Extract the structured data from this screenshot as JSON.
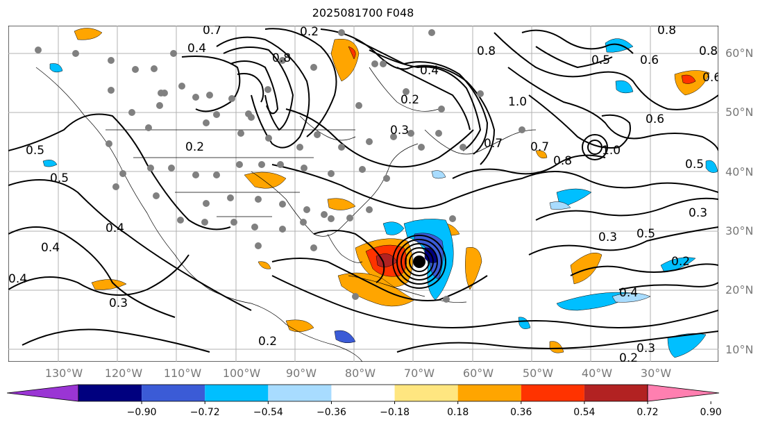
{
  "title": "2025081700 F048",
  "lat_labels": [
    "60°N",
    "50°N",
    "40°N",
    "30°N",
    "20°N",
    "10°N"
  ],
  "lon_labels": [
    "130°W",
    "120°W",
    "110°W",
    "100°W",
    "90°W",
    "80°W",
    "70°W",
    "60°W",
    "50°W",
    "40°W",
    "30°W"
  ],
  "colorbar": {
    "ticks": [
      "−0.90",
      "−0.72",
      "−0.54",
      "−0.36",
      "−0.18",
      "0.18",
      "0.36",
      "0.54",
      "0.72",
      "0.90"
    ],
    "colors": [
      "#9a35d4",
      "#00007f",
      "#3b5bd6",
      "#00bfff",
      "#a8dcff",
      "#ffffff",
      "#ffe680",
      "#ffa500",
      "#ff3300",
      "#b22222",
      "#ff7fb0"
    ]
  },
  "contour_labels": [
    "0.7",
    "0.2",
    "0.4",
    "0.8",
    "0.4",
    "0.2",
    "0.3",
    "0.2",
    "0.7",
    "1.0",
    "0.8",
    "0.5",
    "0.8",
    "0.8",
    "0.6",
    "1.0",
    "0.6",
    "0.8",
    "0.7",
    "0.5",
    "0.5",
    "0.4",
    "0.5",
    "0.4",
    "0.3",
    "0.6",
    "0.3",
    "0.5",
    "0.2",
    "0.4",
    "0.3",
    "0.2",
    "0.2",
    "0.4",
    "0.3"
  ],
  "shading_colors": {
    "positive_mid": "#ffa500",
    "positive_high": "#ff3300",
    "negative_mid": "#00bfff",
    "negative_low": "#a8dcff",
    "negative_strong": "#0000a0"
  }
}
